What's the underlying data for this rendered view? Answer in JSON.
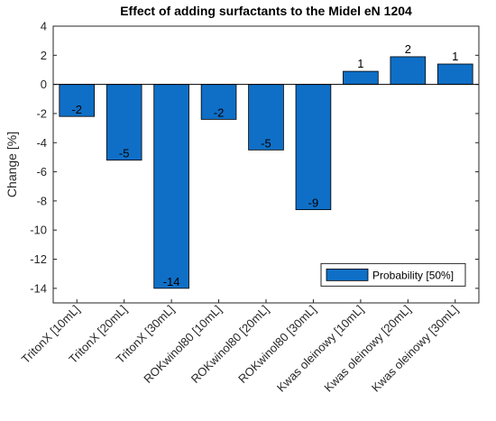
{
  "chart_data": {
    "type": "bar",
    "title": "Effect of adding surfactants to the Midel eN 1204",
    "xlabel": "",
    "ylabel": "Change [%]",
    "ylim": [
      -15,
      4
    ],
    "yticks": [
      4,
      2,
      0,
      -2,
      -4,
      -6,
      -8,
      -10,
      -12,
      -14
    ],
    "grid": false,
    "legend_position": "bottom-right",
    "bar_color": "#0f6fc6",
    "categories": [
      "TritonX [10mL]",
      "TritonX [20mL]",
      "TritonX [30mL]",
      "ROKwinol80 [10mL]",
      "ROKwinol80 [20mL]",
      "ROKwinol80 [30mL]",
      "Kwas oleinowy [10mL]",
      "Kwas oleinowy [20mL]",
      "Kwas oleinowy [30mL]"
    ],
    "series": [
      {
        "name": "Probability [50%]",
        "values": [
          -2.2,
          -5.2,
          -14.0,
          -2.4,
          -4.5,
          -8.6,
          0.9,
          1.9,
          1.4
        ],
        "labels": [
          "-2",
          "-5",
          "-14",
          "-2",
          "-5",
          "-9",
          "1",
          "2",
          "1"
        ]
      }
    ]
  }
}
